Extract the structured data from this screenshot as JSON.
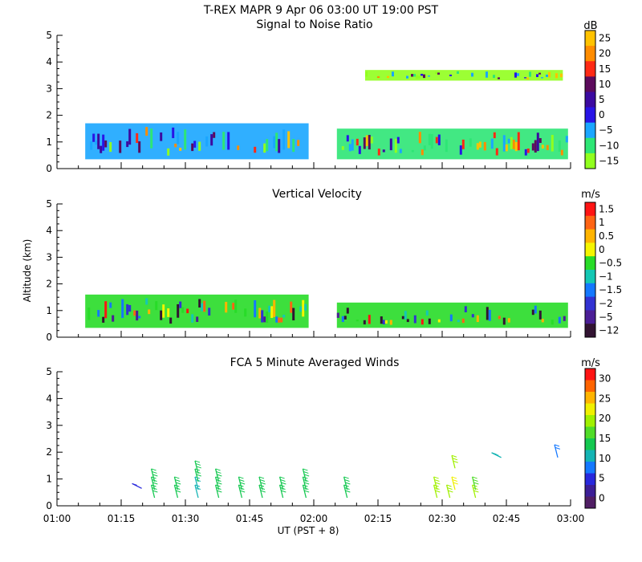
{
  "figure": {
    "title": "T-REX  MAPR  9 Apr 06  03:00 UT  19:00  PST",
    "xlabel": "UT  (PST + 8)",
    "ylabel": "Altitude (km)"
  },
  "chart_data": [
    {
      "type": "heatmap",
      "title": "Signal to Noise Ratio",
      "colorbar_unit": "dB",
      "x_ticks": [
        "01:00",
        "01:15",
        "01:30",
        "01:45",
        "02:00",
        "02:15",
        "02:30",
        "02:45",
        "03:00"
      ],
      "xlim_hours": [
        1.0,
        3.0
      ],
      "ylim": [
        0,
        5
      ],
      "y_ticks": [
        "0",
        "1",
        "2",
        "3",
        "4",
        "5"
      ],
      "colorbar_labels": [
        "25",
        "20",
        "15",
        "10",
        "5",
        "0",
        "−5",
        "−10",
        "−15"
      ],
      "colorbar_colors": [
        "#ffc200",
        "#ff8c00",
        "#ff2a14",
        "#5c0a5c",
        "#3c0aa0",
        "#2814e6",
        "#1aa6ff",
        "#2ee675",
        "#91ff1e"
      ],
      "regions": [
        {
          "name": "main-block",
          "x": [
            1.11,
            1.98
          ],
          "y": [
            0.35,
            1.7
          ],
          "level": "#1aa6ff"
        },
        {
          "name": "right-block",
          "x": [
            2.09,
            2.99
          ],
          "y": [
            0.35,
            1.5
          ],
          "level": "#2ee675"
        },
        {
          "name": "upper-layer",
          "x": [
            2.2,
            2.97
          ],
          "y": [
            3.3,
            3.7
          ],
          "level": "#91ff1e"
        }
      ]
    },
    {
      "type": "heatmap",
      "title": "Vertical Velocity",
      "colorbar_unit": "m/s",
      "x_ticks": [
        "01:00",
        "01:15",
        "01:30",
        "01:45",
        "02:00",
        "02:15",
        "02:30",
        "02:45",
        "03:00"
      ],
      "xlim_hours": [
        1.0,
        3.0
      ],
      "ylim": [
        0,
        5
      ],
      "y_ticks": [
        "0",
        "1",
        "2",
        "3",
        "4",
        "5"
      ],
      "colorbar_labels": [
        "1.5",
        "1",
        "0.5",
        "0",
        "−0.5",
        "−1",
        "−1.5",
        "−2",
        "−5",
        "−12"
      ],
      "colorbar_colors": [
        "#ff1414",
        "#ff6414",
        "#ffb400",
        "#f5f500",
        "#28dc28",
        "#14c8b4",
        "#1478ff",
        "#3232d2",
        "#4b1e96",
        "#321432"
      ],
      "regions": [
        {
          "name": "main-block",
          "x": [
            1.11,
            1.98
          ],
          "y": [
            0.35,
            1.6
          ],
          "level": "#28dc28"
        },
        {
          "name": "right-block",
          "x": [
            2.09,
            2.99
          ],
          "y": [
            0.35,
            1.3
          ],
          "level": "#28dc28"
        }
      ]
    },
    {
      "type": "scatter",
      "title": "FCA 5 Minute Averaged Winds",
      "colorbar_unit": "m/s",
      "x_ticks": [
        "01:00",
        "01:15",
        "01:30",
        "01:45",
        "02:00",
        "02:15",
        "02:30",
        "02:45",
        "03:00"
      ],
      "xlim_hours": [
        1.0,
        3.0
      ],
      "ylim": [
        0,
        5
      ],
      "y_ticks": [
        "0",
        "1",
        "2",
        "3",
        "4",
        "5"
      ],
      "colorbar_labels": [
        "30",
        "25",
        "20",
        "15",
        "10",
        "5",
        "0"
      ],
      "colorbar_colors": [
        "#ff1414",
        "#ff6400",
        "#ffb400",
        "#f0f000",
        "#a0f000",
        "#50dc28",
        "#14c850",
        "#14b4b4",
        "#1478ff",
        "#2828dc",
        "#3c1e96",
        "#501e64"
      ],
      "barbs": [
        {
          "t": 1.33,
          "alt": 0.65,
          "dir": "nw",
          "speed": 6
        },
        {
          "t": 1.38,
          "alt": 0.3,
          "dir": "n",
          "speed": 15
        },
        {
          "t": 1.38,
          "alt": 0.6,
          "dir": "n",
          "speed": 14
        },
        {
          "t": 1.38,
          "alt": 0.9,
          "dir": "n",
          "speed": 14
        },
        {
          "t": 1.47,
          "alt": 0.3,
          "dir": "n",
          "speed": 14
        },
        {
          "t": 1.47,
          "alt": 0.6,
          "dir": "n",
          "speed": 13
        },
        {
          "t": 1.55,
          "alt": 0.3,
          "dir": "n",
          "speed": 12
        },
        {
          "t": 1.55,
          "alt": 0.6,
          "dir": "n",
          "speed": 11
        },
        {
          "t": 1.55,
          "alt": 0.9,
          "dir": "n",
          "speed": 13
        },
        {
          "t": 1.55,
          "alt": 1.2,
          "dir": "n",
          "speed": 13
        },
        {
          "t": 1.63,
          "alt": 0.3,
          "dir": "n",
          "speed": 14
        },
        {
          "t": 1.63,
          "alt": 0.6,
          "dir": "n",
          "speed": 14
        },
        {
          "t": 1.63,
          "alt": 0.9,
          "dir": "n",
          "speed": 13
        },
        {
          "t": 1.72,
          "alt": 0.3,
          "dir": "n",
          "speed": 14
        },
        {
          "t": 1.72,
          "alt": 0.6,
          "dir": "n",
          "speed": 14
        },
        {
          "t": 1.8,
          "alt": 0.3,
          "dir": "n",
          "speed": 13
        },
        {
          "t": 1.8,
          "alt": 0.6,
          "dir": "n",
          "speed": 14
        },
        {
          "t": 1.88,
          "alt": 0.3,
          "dir": "n",
          "speed": 14
        },
        {
          "t": 1.88,
          "alt": 0.6,
          "dir": "n",
          "speed": 14
        },
        {
          "t": 1.97,
          "alt": 0.3,
          "dir": "n",
          "speed": 15
        },
        {
          "t": 1.97,
          "alt": 0.6,
          "dir": "n",
          "speed": 15
        },
        {
          "t": 1.97,
          "alt": 0.9,
          "dir": "n",
          "speed": 15
        },
        {
          "t": 2.13,
          "alt": 0.3,
          "dir": "n",
          "speed": 14
        },
        {
          "t": 2.13,
          "alt": 0.6,
          "dir": "n",
          "speed": 14
        },
        {
          "t": 2.48,
          "alt": 0.3,
          "dir": "n",
          "speed": 20
        },
        {
          "t": 2.48,
          "alt": 0.6,
          "dir": "n",
          "speed": 19
        },
        {
          "t": 2.53,
          "alt": 0.3,
          "dir": "n",
          "speed": 20
        },
        {
          "t": 2.55,
          "alt": 0.6,
          "dir": "n",
          "speed": 21
        },
        {
          "t": 2.55,
          "alt": 1.4,
          "dir": "n",
          "speed": 19
        },
        {
          "t": 2.63,
          "alt": 0.3,
          "dir": "n",
          "speed": 19
        },
        {
          "t": 2.63,
          "alt": 0.6,
          "dir": "n",
          "speed": 17
        },
        {
          "t": 2.73,
          "alt": 1.8,
          "dir": "nw",
          "speed": 10
        },
        {
          "t": 2.95,
          "alt": 1.8,
          "dir": "n",
          "speed": 8
        }
      ]
    }
  ]
}
